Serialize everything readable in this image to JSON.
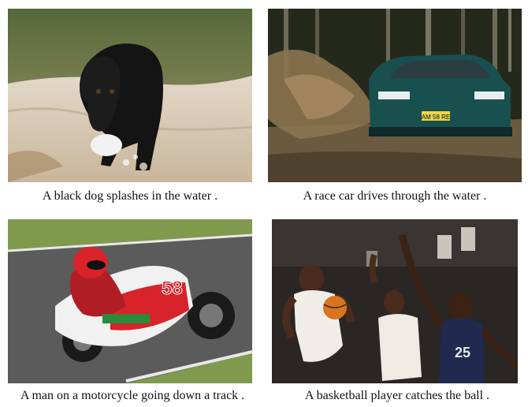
{
  "images": [
    {
      "name": "dog-photo",
      "caption": "A black dog splashes in the water .",
      "colors": {
        "water": "#7d8a4f",
        "sand": "#d8c9b3",
        "dog": "#141414"
      }
    },
    {
      "name": "race-car-photo",
      "caption": "A race car drives through the water .",
      "colors": {
        "trees": "#2c3222",
        "mud": "#7d6644",
        "car": "#17504f"
      }
    },
    {
      "name": "motorcycle-photo",
      "caption": "A man on a motorcycle going down a track .",
      "colors": {
        "track": "#5a5a5a",
        "grass": "#7f9a4d",
        "bike": "#d8232a"
      }
    },
    {
      "name": "basketball-photo",
      "caption": "A basketball player catches the ball .",
      "colors": {
        "background": "#2a2624",
        "white-jersey": "#f0ede8",
        "navy-jersey": "#1f2a4e"
      }
    }
  ]
}
